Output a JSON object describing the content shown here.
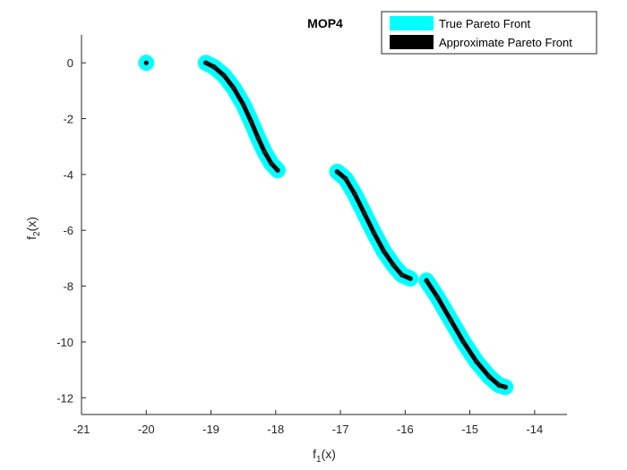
{
  "chart_data": {
    "type": "line",
    "title": "MOP4",
    "xlabel": {
      "base": "f",
      "sub": "1",
      "tail": "(x)"
    },
    "ylabel": {
      "base": "f",
      "sub": "2",
      "tail": "(x)"
    },
    "xlim": [
      -21,
      -13.5
    ],
    "ylim": [
      -12.6,
      1
    ],
    "xticks": [
      -21,
      -20,
      -19,
      -18,
      -17,
      -16,
      -15,
      -14
    ],
    "yticks": [
      0,
      -2,
      -4,
      -6,
      -8,
      -10,
      -12
    ],
    "xtick_labels": [
      "-21",
      "-20",
      "-19",
      "-18",
      "-17",
      "-16",
      "-15",
      "-14"
    ],
    "ytick_labels": [
      "0",
      "-2",
      "-4",
      "-6",
      "-8",
      "-10",
      "-12"
    ],
    "grid": false,
    "legend_position": "top-right",
    "series": [
      {
        "name": "True Pareto Front",
        "color": "#00ffff",
        "segments": [
          [
            [
              -20.0,
              0.0
            ]
          ],
          [
            [
              -19.08,
              0.0
            ],
            [
              -18.95,
              -0.15
            ],
            [
              -18.8,
              -0.45
            ],
            [
              -18.65,
              -0.9
            ],
            [
              -18.5,
              -1.5
            ],
            [
              -18.38,
              -2.1
            ],
            [
              -18.27,
              -2.7
            ],
            [
              -18.17,
              -3.2
            ],
            [
              -18.07,
              -3.6
            ],
            [
              -17.97,
              -3.85
            ]
          ],
          [
            [
              -17.05,
              -3.9
            ],
            [
              -16.92,
              -4.15
            ],
            [
              -16.78,
              -4.7
            ],
            [
              -16.63,
              -5.4
            ],
            [
              -16.48,
              -6.1
            ],
            [
              -16.33,
              -6.75
            ],
            [
              -16.18,
              -7.25
            ],
            [
              -16.05,
              -7.6
            ],
            [
              -15.92,
              -7.73
            ]
          ],
          [
            [
              -15.67,
              -7.8
            ],
            [
              -15.5,
              -8.4
            ],
            [
              -15.3,
              -9.2
            ],
            [
              -15.1,
              -10.0
            ],
            [
              -14.9,
              -10.7
            ],
            [
              -14.7,
              -11.25
            ],
            [
              -14.55,
              -11.55
            ],
            [
              -14.45,
              -11.62
            ]
          ]
        ]
      },
      {
        "name": "Approximate Pareto Front",
        "color": "#000000",
        "segments": [
          [
            [
              -20.0,
              0.0
            ]
          ],
          [
            [
              -19.08,
              0.0
            ],
            [
              -18.95,
              -0.15
            ],
            [
              -18.8,
              -0.45
            ],
            [
              -18.65,
              -0.9
            ],
            [
              -18.5,
              -1.5
            ],
            [
              -18.38,
              -2.1
            ],
            [
              -18.27,
              -2.7
            ],
            [
              -18.17,
              -3.2
            ],
            [
              -18.07,
              -3.6
            ],
            [
              -17.97,
              -3.85
            ]
          ],
          [
            [
              -17.05,
              -3.9
            ],
            [
              -16.92,
              -4.15
            ],
            [
              -16.78,
              -4.7
            ],
            [
              -16.63,
              -5.4
            ],
            [
              -16.48,
              -6.1
            ],
            [
              -16.33,
              -6.75
            ],
            [
              -16.18,
              -7.25
            ],
            [
              -16.05,
              -7.6
            ],
            [
              -15.92,
              -7.73
            ]
          ],
          [
            [
              -15.67,
              -7.8
            ],
            [
              -15.5,
              -8.4
            ],
            [
              -15.3,
              -9.2
            ],
            [
              -15.1,
              -10.0
            ],
            [
              -14.9,
              -10.7
            ],
            [
              -14.7,
              -11.25
            ],
            [
              -14.55,
              -11.55
            ],
            [
              -14.45,
              -11.62
            ]
          ]
        ]
      }
    ]
  }
}
